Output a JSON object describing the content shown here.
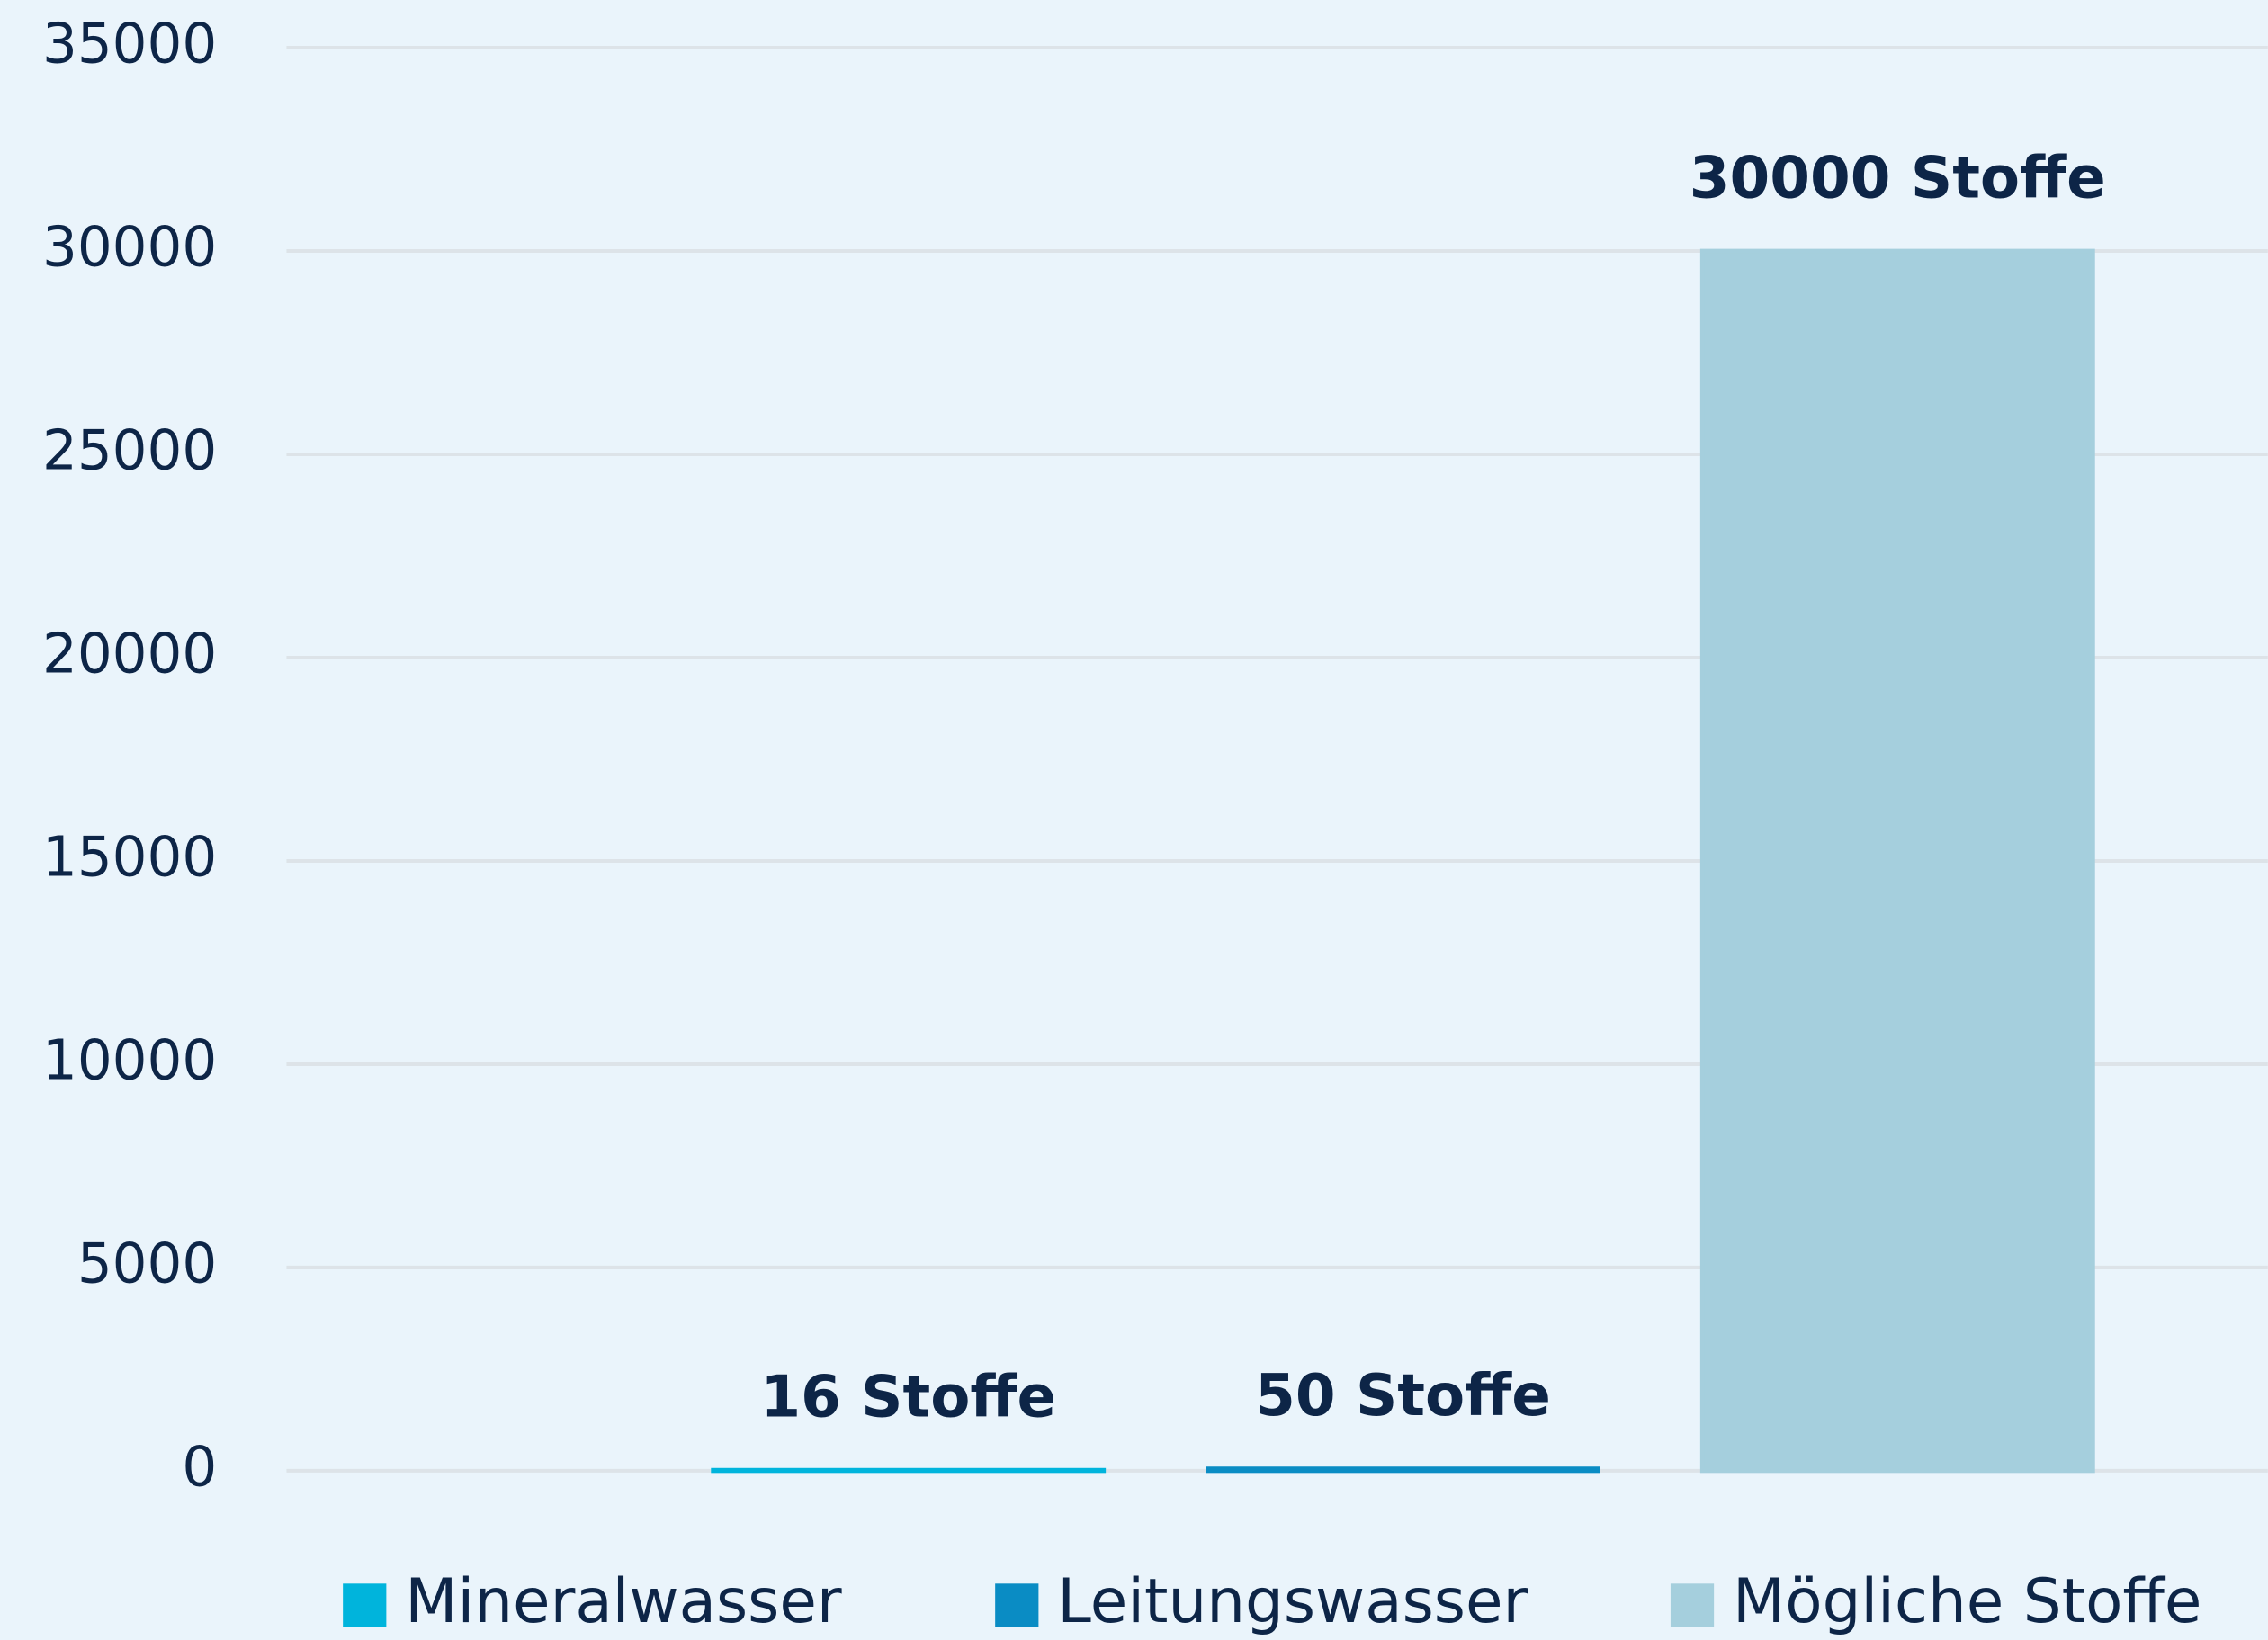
{
  "chart_data": {
    "type": "bar",
    "categories": [
      null
    ],
    "series": [
      {
        "name": "Mineralwasser",
        "color": "#00b4dc",
        "values": [
          16
        ],
        "value_labels": [
          "16 Stoffe"
        ]
      },
      {
        "name": "Leitungswasser",
        "color": "#0a8cc4",
        "values": [
          50
        ],
        "value_labels": [
          "50 Stoffe"
        ]
      },
      {
        "name": "Mögliche Stoffe",
        "color": "#a5cfdd",
        "values": [
          30000
        ],
        "value_labels": [
          "30000 Stoffe"
        ]
      }
    ],
    "ylim": [
      0,
      35000
    ],
    "yticks": [
      0,
      5000,
      10000,
      15000,
      20000,
      25000,
      30000,
      35000
    ],
    "grid": true,
    "legend": "bottom"
  }
}
